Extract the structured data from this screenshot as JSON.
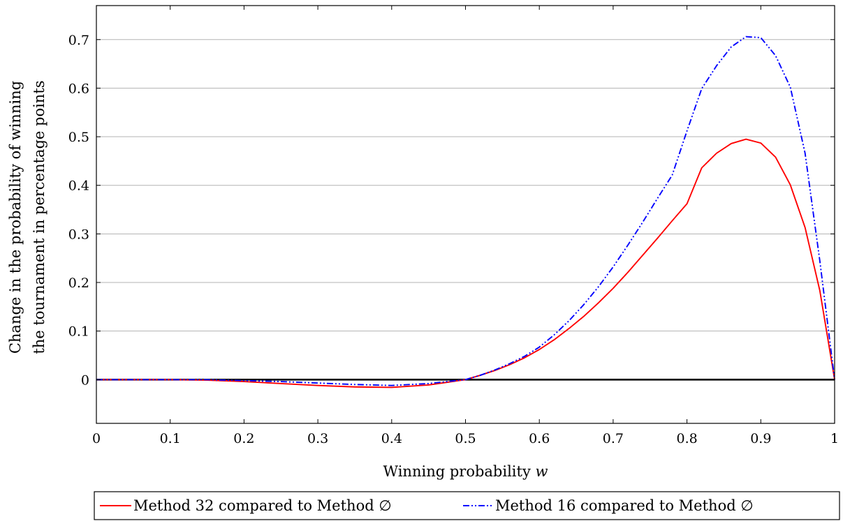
{
  "chart_data": {
    "type": "line",
    "title": "",
    "xlabel": "Winning probability",
    "xlabel_var": "w",
    "ylabel_line1": "Change in the probability of winning",
    "ylabel_line2": "the tournament in percentage points",
    "xlim": [
      0,
      1
    ],
    "ylim": [
      -0.09,
      0.77
    ],
    "x_ticks": [
      0,
      0.1,
      0.2,
      0.3,
      0.4,
      0.5,
      0.6,
      0.7,
      0.8,
      0.9,
      1
    ],
    "x_tick_labels": [
      "0",
      "0.1",
      "0.2",
      "0.3",
      "0.4",
      "0.5",
      "0.6",
      "0.7",
      "0.8",
      "0.9",
      "1"
    ],
    "y_ticks": [
      0,
      0.1,
      0.2,
      0.3,
      0.4,
      0.5,
      0.6,
      0.7
    ],
    "y_tick_labels": [
      "0",
      "0.1",
      "0.2",
      "0.3",
      "0.4",
      "0.5",
      "0.6",
      "0.7"
    ],
    "grid": "horizontal",
    "legend_position": "bottom",
    "zero_line_color": "#000000",
    "series": [
      {
        "name": "Method 32 compared to Method ∅",
        "color": "#ff0000",
        "style": "solid",
        "x": [
          0,
          0.1,
          0.15,
          0.2,
          0.25,
          0.3,
          0.35,
          0.4,
          0.45,
          0.5,
          0.52,
          0.54,
          0.56,
          0.58,
          0.6,
          0.62,
          0.64,
          0.66,
          0.68,
          0.7,
          0.72,
          0.74,
          0.76,
          0.78,
          0.8,
          0.82,
          0.84,
          0.86,
          0.88,
          0.9,
          0.92,
          0.94,
          0.96,
          0.98,
          1
        ],
        "y": [
          0,
          0,
          -0.001,
          -0.004,
          -0.008,
          -0.012,
          -0.015,
          -0.016,
          -0.011,
          0,
          0.009,
          0.019,
          0.031,
          0.045,
          0.062,
          0.082,
          0.105,
          0.13,
          0.158,
          0.188,
          0.221,
          0.256,
          0.291,
          0.327,
          0.362,
          0.436,
          0.466,
          0.486,
          0.495,
          0.487,
          0.458,
          0.401,
          0.313,
          0.183,
          0
        ]
      },
      {
        "name": "Method 16 compared to Method ∅",
        "color": "#0000ff",
        "style": "dash-dot-dot",
        "x": [
          0,
          0.1,
          0.15,
          0.2,
          0.25,
          0.3,
          0.35,
          0.4,
          0.45,
          0.5,
          0.52,
          0.54,
          0.56,
          0.58,
          0.6,
          0.62,
          0.64,
          0.66,
          0.68,
          0.7,
          0.72,
          0.74,
          0.76,
          0.78,
          0.8,
          0.82,
          0.84,
          0.86,
          0.88,
          0.9,
          0.92,
          0.94,
          0.96,
          0.98,
          1
        ],
        "y": [
          0,
          0,
          0,
          -0.002,
          -0.004,
          -0.007,
          -0.01,
          -0.012,
          -0.008,
          0,
          0.009,
          0.02,
          0.033,
          0.048,
          0.067,
          0.092,
          0.121,
          0.154,
          0.191,
          0.232,
          0.277,
          0.324,
          0.373,
          0.421,
          0.512,
          0.599,
          0.646,
          0.685,
          0.706,
          0.704,
          0.667,
          0.602,
          0.466,
          0.244,
          0
        ]
      }
    ]
  }
}
